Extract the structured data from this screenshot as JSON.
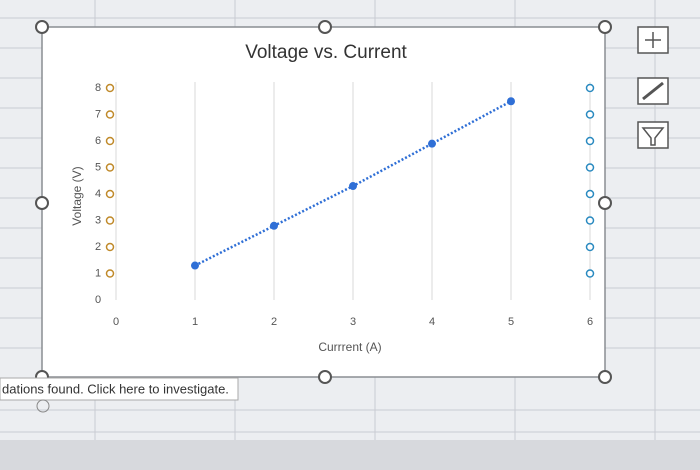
{
  "chart_data": {
    "type": "line",
    "title": "Voltage vs. Current",
    "x_label": "Currrent (A)",
    "y_label": "Voltage (V)",
    "x": [
      1,
      2,
      3,
      4,
      5
    ],
    "values": [
      1.3,
      2.8,
      4.3,
      5.9,
      7.5
    ],
    "color": "#2f6fd6",
    "line_style": "dotted",
    "xlim": [
      0,
      6
    ],
    "xticks": [
      0,
      1,
      2,
      3,
      4,
      5,
      6
    ],
    "ylim": [
      0,
      8
    ],
    "yticks": [
      0,
      1,
      2,
      3,
      4,
      5,
      6,
      7,
      8
    ],
    "grid": "x"
  },
  "status_text": "dations found. Click here to investigate."
}
